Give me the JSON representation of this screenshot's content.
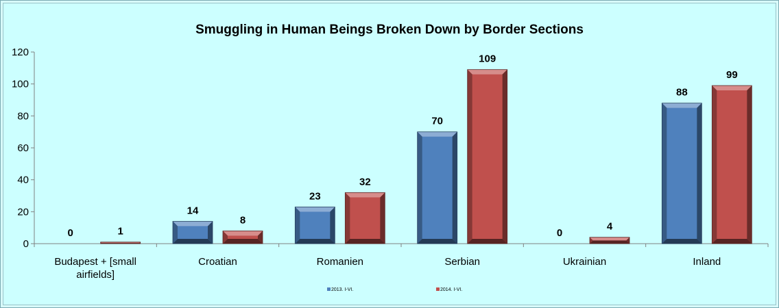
{
  "chart_data": {
    "type": "bar",
    "title": "Smuggling in Human Beings Broken Down by Border Sections",
    "categories": [
      [
        "Budapest + [small",
        "airfields]"
      ],
      [
        "Croatian"
      ],
      [
        "Romanien"
      ],
      [
        "Serbian"
      ],
      [
        "Ukrainian"
      ],
      [
        "Inland"
      ]
    ],
    "series": [
      {
        "name": "2013. I-VI.",
        "color": "#4f81bd",
        "values": [
          0,
          14,
          23,
          70,
          0,
          88
        ]
      },
      {
        "name": "2014. I-VI.",
        "color": "#c0504d",
        "values": [
          1,
          8,
          32,
          109,
          4,
          99
        ]
      }
    ],
    "ylim": [
      0,
      120
    ],
    "yticks": [
      "0",
      "20",
      "40",
      "60",
      "80",
      "100",
      "120"
    ],
    "xlabel": "",
    "ylabel": "",
    "legend": "bottom",
    "grid": false
  }
}
